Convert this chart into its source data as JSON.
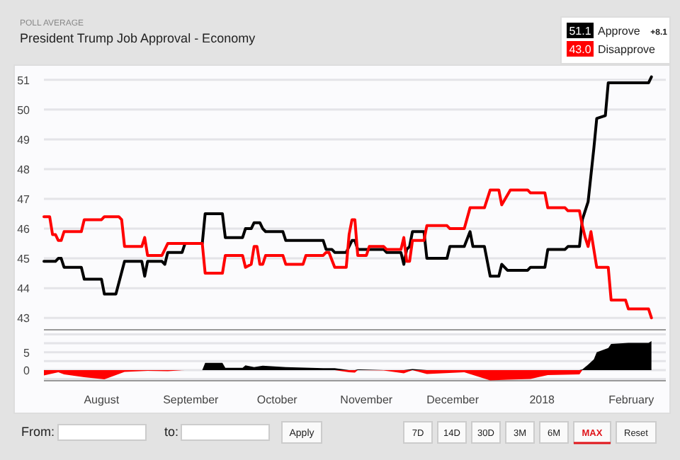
{
  "chart_data": [
    {
      "type": "line",
      "title": "President Trump Job Approval - Economy",
      "subtitle": "POLL AVERAGE",
      "legend": "top right",
      "grid": "y",
      "tick_labels": "y",
      "annotations": [
        "51.1",
        "43.0",
        "+8.1"
      ],
      "xlim": [
        "2017-07-12",
        "2018-02-13"
      ],
      "ylim": [
        42.6,
        51.4
      ],
      "yticks": [
        43,
        44,
        45,
        46,
        47,
        48,
        49,
        50,
        51
      ],
      "series": [
        {
          "name": "Approve",
          "color": "#000000",
          "x": [
            "2017-07-12",
            "2017-07-16",
            "2017-07-17",
            "2017-07-18",
            "2017-07-19",
            "2017-07-25",
            "2017-07-26",
            "2017-08-01",
            "2017-08-02",
            "2017-08-06",
            "2017-08-09",
            "2017-08-15",
            "2017-08-16",
            "2017-08-17",
            "2017-08-22",
            "2017-08-23",
            "2017-08-24",
            "2017-08-29",
            "2017-08-30",
            "2017-09-05",
            "2017-09-06",
            "2017-09-12",
            "2017-09-13",
            "2017-09-19",
            "2017-09-20",
            "2017-09-22",
            "2017-09-23",
            "2017-09-25",
            "2017-09-26",
            "2017-09-27",
            "2017-10-03",
            "2017-10-04",
            "2017-10-17",
            "2017-10-18",
            "2017-10-20",
            "2017-10-21",
            "2017-10-25",
            "2017-10-27",
            "2017-10-28",
            "2017-10-29",
            "2017-11-07",
            "2017-11-08",
            "2017-11-13",
            "2017-11-14",
            "2017-11-15",
            "2017-11-16",
            "2017-11-17",
            "2017-11-21",
            "2017-11-22",
            "2017-11-29",
            "2017-11-30",
            "2017-12-05",
            "2017-12-07",
            "2017-12-08",
            "2017-12-12",
            "2017-12-14",
            "2017-12-17",
            "2017-12-18",
            "2017-12-20",
            "2017-12-27",
            "2017-12-28",
            "2018-01-02",
            "2018-01-03",
            "2018-01-09",
            "2018-01-10",
            "2018-01-14",
            "2018-01-15",
            "2018-01-17",
            "2018-01-19",
            "2018-01-20",
            "2018-01-23",
            "2018-01-24",
            "2018-02-07",
            "2018-02-08"
          ],
          "values": [
            44.9,
            44.9,
            45.0,
            45.0,
            44.7,
            44.7,
            44.3,
            44.3,
            43.8,
            43.8,
            44.9,
            44.9,
            44.4,
            44.9,
            44.9,
            44.8,
            45.2,
            45.2,
            45.5,
            45.5,
            46.5,
            46.5,
            45.7,
            45.7,
            46.0,
            46.0,
            46.2,
            46.2,
            46.0,
            45.9,
            45.9,
            45.6,
            45.6,
            45.3,
            45.3,
            45.2,
            45.2,
            45.6,
            45.6,
            45.3,
            45.3,
            45.2,
            45.2,
            44.8,
            45.3,
            45.4,
            45.9,
            45.9,
            45.0,
            45.0,
            45.4,
            45.4,
            45.9,
            45.4,
            45.4,
            44.4,
            44.4,
            44.8,
            44.6,
            44.6,
            44.7,
            44.7,
            45.3,
            45.3,
            45.4,
            45.4,
            46.3,
            46.9,
            48.7,
            49.7,
            49.8,
            50.9,
            50.9,
            51.1
          ]
        },
        {
          "name": "Disapprove",
          "color": "#ff0000",
          "x": [
            "2017-07-12",
            "2017-07-14",
            "2017-07-15",
            "2017-07-16",
            "2017-07-17",
            "2017-07-18",
            "2017-07-19",
            "2017-07-25",
            "2017-07-26",
            "2017-08-01",
            "2017-08-02",
            "2017-08-07",
            "2017-08-08",
            "2017-08-09",
            "2017-08-15",
            "2017-08-16",
            "2017-08-17",
            "2017-08-22",
            "2017-08-24",
            "2017-09-05",
            "2017-09-06",
            "2017-09-12",
            "2017-09-13",
            "2017-09-19",
            "2017-09-20",
            "2017-09-22",
            "2017-09-23",
            "2017-09-24",
            "2017-09-25",
            "2017-09-26",
            "2017-09-27",
            "2017-10-03",
            "2017-10-04",
            "2017-10-10",
            "2017-10-11",
            "2017-10-17",
            "2017-10-18",
            "2017-10-19",
            "2017-10-21",
            "2017-10-25",
            "2017-10-26",
            "2017-10-27",
            "2017-10-28",
            "2017-10-29",
            "2017-11-01",
            "2017-11-02",
            "2017-11-07",
            "2017-11-08",
            "2017-11-13",
            "2017-11-14",
            "2017-11-15",
            "2017-11-16",
            "2017-11-17",
            "2017-11-21",
            "2017-11-22",
            "2017-11-29",
            "2017-11-30",
            "2017-12-05",
            "2017-12-07",
            "2017-12-12",
            "2017-12-14",
            "2017-12-17",
            "2017-12-18",
            "2017-12-21",
            "2017-12-27",
            "2017-12-28",
            "2018-01-02",
            "2018-01-03",
            "2018-01-09",
            "2018-01-10",
            "2018-01-14",
            "2018-01-15",
            "2018-01-16",
            "2018-01-17",
            "2018-01-18",
            "2018-01-20",
            "2018-01-24",
            "2018-01-25",
            "2018-01-30",
            "2018-01-31",
            "2018-02-07",
            "2018-02-08"
          ],
          "values": [
            46.4,
            46.4,
            45.8,
            45.8,
            45.6,
            45.6,
            45.9,
            45.9,
            46.3,
            46.3,
            46.4,
            46.4,
            46.3,
            45.4,
            45.4,
            45.7,
            45.1,
            45.1,
            45.5,
            45.5,
            44.5,
            44.5,
            45.1,
            45.1,
            44.7,
            44.8,
            45.4,
            45.4,
            44.8,
            44.8,
            45.1,
            45.1,
            44.8,
            44.8,
            45.1,
            45.1,
            45.2,
            45.2,
            44.7,
            44.7,
            45.8,
            46.3,
            46.3,
            45.1,
            45.1,
            45.4,
            45.4,
            45.3,
            45.3,
            45.7,
            44.9,
            44.9,
            45.6,
            45.6,
            46.1,
            46.1,
            46.0,
            46.0,
            46.7,
            46.7,
            47.3,
            47.3,
            46.8,
            47.3,
            47.3,
            47.2,
            47.2,
            46.7,
            46.7,
            46.6,
            46.6,
            46.1,
            45.7,
            45.4,
            45.9,
            44.7,
            44.7,
            43.6,
            43.6,
            43.3,
            43.3,
            43.0
          ]
        }
      ]
    },
    {
      "type": "area",
      "grid": "y",
      "annotations": [
        "From:",
        "to:",
        "Apply",
        "7D",
        "14D",
        "30D",
        "3M",
        "6M",
        "MAX",
        "Reset"
      ],
      "xlim": [
        "2017-07-12",
        "2018-02-13"
      ],
      "xticks": [
        {
          "value": "2017-08-01",
          "label": "August"
        },
        {
          "value": "2017-09-01",
          "label": "September"
        },
        {
          "value": "2017-10-01",
          "label": "October"
        },
        {
          "value": "2017-11-01",
          "label": "November"
        },
        {
          "value": "2017-12-01",
          "label": "December"
        },
        {
          "value": "2018-01-01",
          "label": "2018"
        },
        {
          "value": "2018-02-01",
          "label": "February"
        }
      ],
      "ylim": [
        -3,
        10.5
      ],
      "yticks": [
        {
          "value": -2.5,
          "label": null
        },
        0,
        {
          "value": 2.5,
          "label": null
        },
        5,
        {
          "value": 7.5,
          "label": null
        },
        {
          "value": 10,
          "label": null
        }
      ],
      "x": [
        "2017-07-12",
        "2017-07-17",
        "2017-07-19",
        "2017-07-26",
        "2017-08-02",
        "2017-08-09",
        "2017-08-17",
        "2017-08-24",
        "2017-08-30",
        "2017-09-05",
        "2017-09-06",
        "2017-09-12",
        "2017-09-13",
        "2017-09-19",
        "2017-09-20",
        "2017-09-23",
        "2017-09-26",
        "2017-10-04",
        "2017-10-17",
        "2017-10-21",
        "2017-10-26",
        "2017-10-28",
        "2017-10-29",
        "2017-11-07",
        "2017-11-14",
        "2017-11-17",
        "2017-11-22",
        "2017-12-05",
        "2017-12-14",
        "2017-12-20",
        "2017-12-28",
        "2018-01-03",
        "2018-01-14",
        "2018-01-15",
        "2018-01-17",
        "2018-01-19",
        "2018-01-20",
        "2018-01-24",
        "2018-01-25",
        "2018-01-31",
        "2018-02-07",
        "2018-02-08"
      ],
      "series": [
        {
          "color": "#000000",
          "values": [
            0,
            0,
            0,
            0,
            0,
            0,
            0,
            0,
            0,
            0,
            2.0,
            2.0,
            0.6,
            0.6,
            1.3,
            0.8,
            1.2,
            0.8,
            0.5,
            0.5,
            0,
            0,
            0.2,
            0,
            0,
            0.3,
            0,
            0,
            0,
            0,
            0,
            0,
            0,
            0.2,
            1.5,
            3.0,
            5.0,
            6.2,
            7.3,
            7.6,
            7.6,
            8.1
          ]
        },
        {
          "color": "#ff0000",
          "values": [
            -1.5,
            -0.6,
            -1.2,
            -2.0,
            -2.6,
            -0.5,
            -0.2,
            -0.3,
            0,
            0,
            0,
            0,
            0,
            0,
            0,
            0,
            0,
            0,
            0,
            0,
            -0.6,
            -0.7,
            0,
            -0.1,
            -0.9,
            0,
            -1.1,
            -0.6,
            -2.9,
            -2.7,
            -2.5,
            -1.4,
            -1.2,
            0,
            0,
            0,
            0,
            0,
            0,
            0,
            0,
            0
          ]
        }
      ]
    }
  ]
}
